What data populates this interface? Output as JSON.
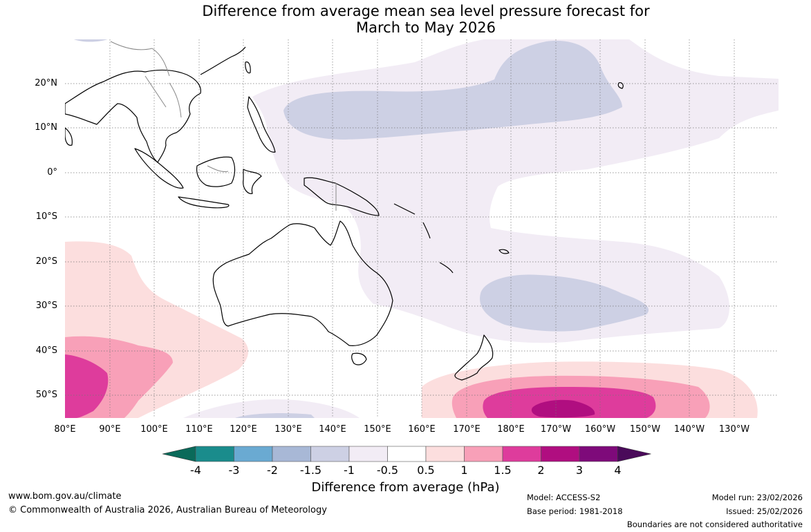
{
  "title": {
    "line1": "Difference from average mean sea level pressure forecast for",
    "line2": "March to May 2026"
  },
  "map": {
    "lat_labels": [
      "20°N",
      "10°N",
      "0°",
      "10°S",
      "20°S",
      "30°S",
      "40°S",
      "50°S"
    ],
    "lon_labels": [
      "80°E",
      "90°E",
      "100°E",
      "110°E",
      "120°E",
      "130°E",
      "140°E",
      "150°E",
      "160°E",
      "170°E",
      "180°E",
      "170°W",
      "160°W",
      "150°W",
      "140°W",
      "130°W"
    ]
  },
  "colorbar": {
    "ticks": [
      "-4",
      "-3",
      "-2",
      "-1.5",
      "-1",
      "-0.5",
      "0.5",
      "1",
      "1.5",
      "2",
      "3",
      "4"
    ],
    "colors": [
      "#1a8c8c",
      "#6aaad2",
      "#a8b8d6",
      "#cdd0e4",
      "#f2ecf5",
      "#ffffff",
      "#fcdede",
      "#f8a0b8",
      "#de3c9c",
      "#b00e80",
      "#7e0a7a"
    ],
    "extend_low_color": "#0a6a5a",
    "extend_high_color": "#4a0a5a",
    "label": "Difference from average (hPa)"
  },
  "footer": {
    "website": "www.bom.gov.au/climate",
    "copyright": "© Commonwealth of Australia 2026, Australian Bureau of Meteorology",
    "model": "Model: ACCESS-S2",
    "base_period": "Base period: 1981-2018",
    "model_run": "Model run: 23/02/2026",
    "issued": "Issued: 25/02/2026",
    "disclaimer": "Boundaries are not considered authoritative"
  }
}
